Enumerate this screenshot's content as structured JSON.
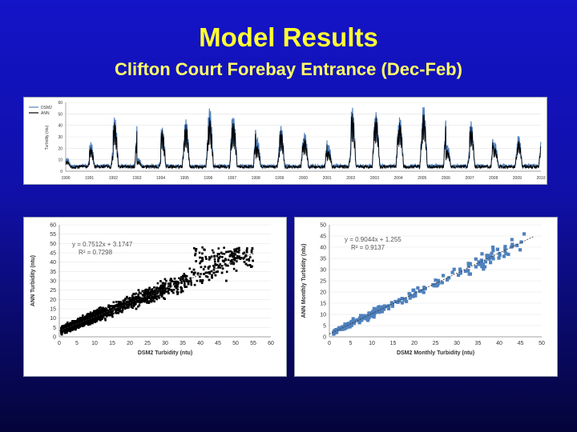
{
  "slide": {
    "title": "Model Results",
    "subtitle": "Clifton Court Forebay Entrance (Dec-Feb)"
  },
  "chart_data": [
    {
      "type": "line",
      "ylabel": "Turbidity (ntu)",
      "ylim": [
        0,
        60
      ],
      "yticks": [
        0,
        10,
        20,
        30,
        40,
        50,
        60
      ],
      "xticks": [
        "1990",
        "1991",
        "1992",
        "1993",
        "1994",
        "1995",
        "1996",
        "1997",
        "1998",
        "1999",
        "2000",
        "2001",
        "2002",
        "2003",
        "2004",
        "2005",
        "2006",
        "2007",
        "2008",
        "2009",
        "2010"
      ],
      "legend_position": "top-left",
      "series": [
        {
          "name": "DSM2",
          "color": "#4f81bd"
        },
        {
          "name": "ANN",
          "color": "#000000"
        }
      ],
      "seasonal_peaks": [
        {
          "season": "1990-91",
          "dsm2_peak": 8,
          "ann_peak": 6
        },
        {
          "season": "1991-92",
          "dsm2_peak": 22,
          "ann_peak": 18
        },
        {
          "season": "1992-93",
          "dsm2_peak": 44,
          "ann_peak": 40
        },
        {
          "season": "1993-94",
          "dsm2_peak": 8,
          "ann_peak": 6
        },
        {
          "season": "1994-95",
          "dsm2_peak": 35,
          "ann_peak": 33
        },
        {
          "season": "1995-96",
          "dsm2_peak": 42,
          "ann_peak": 38
        },
        {
          "season": "1996-97",
          "dsm2_peak": 52,
          "ann_peak": 44
        },
        {
          "season": "1997-98",
          "dsm2_peak": 44,
          "ann_peak": 40
        },
        {
          "season": "1998-99",
          "dsm2_peak": 26,
          "ann_peak": 20
        },
        {
          "season": "1999-00",
          "dsm2_peak": 36,
          "ann_peak": 33
        },
        {
          "season": "2000-01",
          "dsm2_peak": 30,
          "ann_peak": 26
        },
        {
          "season": "2001-02",
          "dsm2_peak": 20,
          "ann_peak": 15
        },
        {
          "season": "2002-03",
          "dsm2_peak": 52,
          "ann_peak": 48
        },
        {
          "season": "2003-04",
          "dsm2_peak": 48,
          "ann_peak": 45
        },
        {
          "season": "2004-05",
          "dsm2_peak": 44,
          "ann_peak": 40
        },
        {
          "season": "2005-06",
          "dsm2_peak": 54,
          "ann_peak": 48
        },
        {
          "season": "2006-07",
          "dsm2_peak": 20,
          "ann_peak": 16
        },
        {
          "season": "2007-08",
          "dsm2_peak": 40,
          "ann_peak": 36
        },
        {
          "season": "2008-09",
          "dsm2_peak": 22,
          "ann_peak": 18
        },
        {
          "season": "2009-10",
          "dsm2_peak": 28,
          "ann_peak": 24
        }
      ]
    },
    {
      "type": "scatter",
      "xlabel": "DSM2 Turbidity (ntu)",
      "ylabel": "ANN Turbidity (ntu)",
      "xlim": [
        0,
        60
      ],
      "ylim": [
        0,
        60
      ],
      "xticks": [
        0,
        5,
        10,
        15,
        20,
        25,
        30,
        35,
        40,
        45,
        50,
        55,
        60
      ],
      "yticks": [
        0,
        5,
        10,
        15,
        20,
        25,
        30,
        35,
        40,
        45,
        50,
        55,
        60
      ],
      "point_color": "#000000",
      "fit": {
        "slope": 0.7512,
        "intercept": 3.1747
      },
      "equation": "y = 0.7512x + 3.1747",
      "r2": "R² = 0.7298"
    },
    {
      "type": "scatter",
      "xlabel": "DSM2 Monthly Turbidity (ntu)",
      "ylabel": "ANN Monthly Turbidity (ntu)",
      "xlim": [
        0,
        50
      ],
      "ylim": [
        0,
        50
      ],
      "xticks": [
        0,
        5,
        10,
        15,
        20,
        25,
        30,
        35,
        40,
        45,
        50
      ],
      "yticks": [
        0,
        5,
        10,
        15,
        20,
        25,
        30,
        35,
        40,
        45,
        50
      ],
      "point_color": "#4f81bd",
      "fit": {
        "slope": 0.9044,
        "intercept": 1.255
      },
      "equation": "y = 0.9044x + 1.255",
      "r2": "R² = 0.9137"
    }
  ]
}
